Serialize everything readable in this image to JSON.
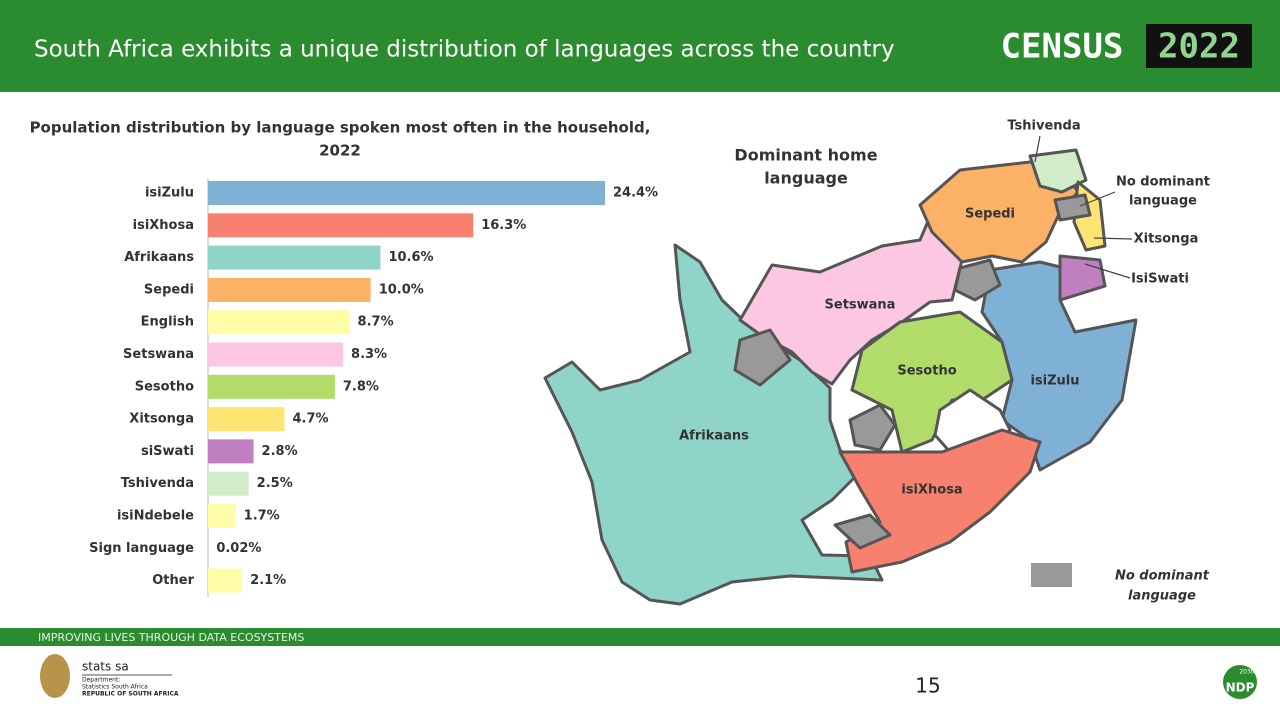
{
  "header": {
    "title": "South Africa exhibits a unique distribution of languages across the country",
    "logo": {
      "word": "CENSUS",
      "year": "2022"
    }
  },
  "chart_data": {
    "type": "bar",
    "orientation": "horizontal",
    "title": "Population distribution by language spoken most often in the household, 2022",
    "categories": [
      "isiZulu",
      "isiXhosa",
      "Afrikaans",
      "Sepedi",
      "English",
      "Setswana",
      "Sesotho",
      "Xitsonga",
      "siSwati",
      "Tshivenda",
      "isiNdebele",
      "Sign language",
      "Other"
    ],
    "values": [
      24.4,
      16.3,
      10.6,
      10.0,
      8.7,
      8.3,
      7.8,
      4.7,
      2.8,
      2.5,
      1.7,
      0.02,
      2.1
    ],
    "value_labels": [
      "24.4%",
      "16.3%",
      "10.6%",
      "10.0%",
      "8.7%",
      "8.3%",
      "7.8%",
      "4.7%",
      "2.8%",
      "2.5%",
      "1.7%",
      "0.02%",
      "2.1%"
    ],
    "colors": [
      "#7fb0d6",
      "#f8806f",
      "#8ed4c8",
      "#fbb266",
      "#fffca8",
      "#fbc7e2",
      "#b2dc6a",
      "#fde473",
      "#bf7fc0",
      "#d2ecc9",
      "#fffca8",
      "#bbbbbb",
      "#fffca8"
    ]
  },
  "map": {
    "title": "Dominant home language",
    "regions": {
      "afrikaans": "Afrikaans",
      "setswana": "Setswana",
      "sepedi": "Sepedi",
      "sesotho": "Sesotho",
      "isizulu": "isiZulu",
      "isixhosa": "isiXhosa"
    },
    "callouts": {
      "tshivenda": "Tshivenda",
      "no_dominant": "No dominant language",
      "xitsonga": "Xitsonga",
      "isiswati": "IsiSwati"
    },
    "legend": "No dominant language"
  },
  "footer": {
    "tagline": "IMPROVING LIVES THROUGH DATA ECOSYSTEMS",
    "org": "stats sa",
    "dept": [
      "Department:",
      "Statistics South Africa",
      "REPUBLIC OF SOUTH AFRICA"
    ],
    "page": "15",
    "ndp": "NDP",
    "ndp_year": "2030"
  }
}
